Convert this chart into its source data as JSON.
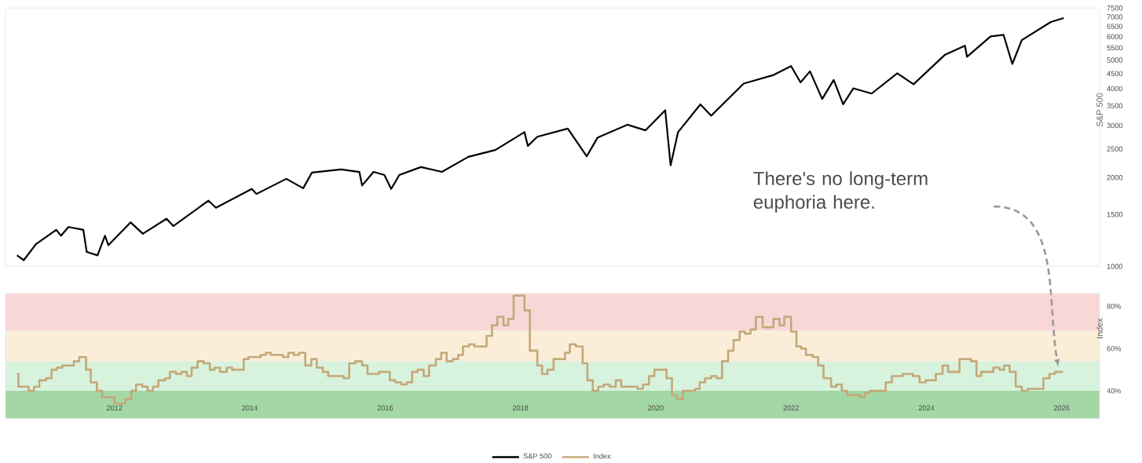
{
  "chart_data": [
    {
      "type": "line",
      "ylabel": "S&P 500",
      "log": "y",
      "tick_labels": "y",
      "xlim": [
        2010.39,
        2026.56
      ],
      "ylim": [
        1000,
        7500
      ],
      "yticks": [
        1000,
        1500,
        2000,
        2500,
        3000,
        3500,
        4000,
        4500,
        5000,
        5500,
        6000,
        6500,
        7000,
        7500
      ],
      "series": [
        {
          "name": "S&P 500",
          "color": "#000000",
          "x": [
            2010.56,
            2010.66,
            2010.84,
            2011.14,
            2011.21,
            2011.32,
            2011.54,
            2011.59,
            2011.75,
            2011.86,
            2011.91,
            2012.24,
            2012.42,
            2012.77,
            2012.87,
            2013.39,
            2013.5,
            2014.03,
            2014.1,
            2014.54,
            2014.79,
            2014.92,
            2015.35,
            2015.62,
            2015.66,
            2015.83,
            2015.99,
            2016.09,
            2016.21,
            2016.53,
            2016.84,
            2017.23,
            2017.63,
            2018.06,
            2018.11,
            2018.25,
            2018.7,
            2018.98,
            2019.14,
            2019.58,
            2019.85,
            2020.14,
            2020.22,
            2020.33,
            2020.66,
            2020.82,
            2021.3,
            2021.73,
            2022.0,
            2022.14,
            2022.28,
            2022.46,
            2022.63,
            2022.77,
            2022.92,
            2023.19,
            2023.57,
            2023.81,
            2024.27,
            2024.57,
            2024.6,
            2024.95,
            2025.14,
            2025.27,
            2025.41,
            2025.84,
            2026.03
          ],
          "values": [
            1090,
            1050,
            1190,
            1330,
            1270,
            1360,
            1330,
            1120,
            1090,
            1270,
            1180,
            1410,
            1290,
            1450,
            1370,
            1670,
            1580,
            1830,
            1760,
            1980,
            1840,
            2080,
            2130,
            2090,
            1880,
            2090,
            2040,
            1830,
            2040,
            2170,
            2090,
            2350,
            2480,
            2850,
            2560,
            2750,
            2930,
            2360,
            2730,
            3020,
            2890,
            3380,
            2200,
            2850,
            3540,
            3240,
            4160,
            4440,
            4770,
            4200,
            4580,
            3690,
            4280,
            3540,
            4010,
            3850,
            4510,
            4140,
            5200,
            5590,
            5130,
            6010,
            6090,
            4850,
            5840,
            6730,
            6940
          ]
        }
      ]
    },
    {
      "type": "step",
      "ylabel": "Index",
      "legend": "bottom",
      "xlim": [
        2010.39,
        2026.56
      ],
      "ylim": [
        27,
        86
      ],
      "xticks": [
        2012,
        2014,
        2016,
        2018,
        2020,
        2022,
        2024,
        2026
      ],
      "yticks": [
        {
          "value": 40,
          "label": "40%"
        },
        {
          "value": 60,
          "label": "60%"
        },
        {
          "value": 80,
          "label": "80%"
        }
      ],
      "bands": [
        {
          "axis": "y",
          "from": 27,
          "to": 40,
          "color": "#a3d7a5"
        },
        {
          "axis": "y",
          "from": 40,
          "to": 54,
          "color": "#d7f2dd"
        },
        {
          "axis": "y",
          "from": 54,
          "to": 68.5,
          "color": "#faeed9"
        },
        {
          "axis": "y",
          "from": 68.5,
          "to": 86,
          "color": "#f8d7d7"
        }
      ],
      "annotations": [
        "There's no long-term euphoria here."
      ],
      "series": [
        {
          "name": "Index",
          "color": "#c4a878",
          "x": [
            2010.56,
            2010.58,
            2010.73,
            2010.81,
            2010.89,
            2010.99,
            2011.07,
            2011.15,
            2011.23,
            2011.4,
            2011.48,
            2011.58,
            2011.65,
            2011.74,
            2011.82,
            2011.91,
            2012.0,
            2012.16,
            2012.25,
            2012.32,
            2012.41,
            2012.49,
            2012.57,
            2012.65,
            2012.75,
            2012.82,
            2012.91,
            2012.99,
            2013.07,
            2013.14,
            2013.23,
            2013.32,
            2013.41,
            2013.48,
            2013.56,
            2013.66,
            2013.74,
            2013.82,
            2013.91,
            2013.98,
            2014.06,
            2014.16,
            2014.24,
            2014.31,
            2014.49,
            2014.57,
            2014.65,
            2014.73,
            2014.82,
            2014.91,
            2014.99,
            2015.08,
            2015.16,
            2015.32,
            2015.39,
            2015.47,
            2015.56,
            2015.66,
            2015.74,
            2015.91,
            2016.07,
            2016.15,
            2016.24,
            2016.32,
            2016.4,
            2016.48,
            2016.57,
            2016.65,
            2016.75,
            2016.83,
            2016.91,
            2017.0,
            2017.08,
            2017.15,
            2017.24,
            2017.32,
            2017.4,
            2017.5,
            2017.58,
            2017.66,
            2017.75,
            2017.82,
            2017.9,
            2018.06,
            2018.14,
            2018.25,
            2018.32,
            2018.4,
            2018.49,
            2018.66,
            2018.73,
            2018.82,
            2018.92,
            2018.99,
            2019.07,
            2019.15,
            2019.23,
            2019.32,
            2019.41,
            2019.49,
            2019.66,
            2019.73,
            2019.81,
            2019.9,
            2019.98,
            2020.08,
            2020.16,
            2020.24,
            2020.31,
            2020.4,
            2020.49,
            2020.58,
            2020.65,
            2020.73,
            2020.82,
            2020.9,
            2020.98,
            2021.07,
            2021.15,
            2021.24,
            2021.32,
            2021.4,
            2021.48,
            2021.58,
            2021.66,
            2021.74,
            2021.83,
            2021.9,
            2022.0,
            2022.08,
            2022.15,
            2022.22,
            2022.32,
            2022.4,
            2022.48,
            2022.59,
            2022.67,
            2022.75,
            2022.83,
            2022.93,
            2023.02,
            2023.09,
            2023.16,
            2023.3,
            2023.4,
            2023.49,
            2023.65,
            2023.8,
            2023.9,
            2023.99,
            2024.14,
            2024.24,
            2024.32,
            2024.49,
            2024.66,
            2024.74,
            2024.81,
            2024.91,
            2024.99,
            2025.08,
            2025.15,
            2025.23,
            2025.32,
            2025.41,
            2025.5,
            2025.73,
            2025.82,
            2025.9,
            2026.02
          ],
          "values": [
            48,
            42,
            40,
            42,
            45,
            46,
            50,
            51,
            52,
            54,
            56,
            50,
            44,
            40,
            37,
            37,
            34,
            36,
            40,
            43,
            42,
            40,
            42,
            45,
            46,
            49,
            48,
            49,
            47,
            51,
            54,
            53,
            50,
            51,
            49,
            51,
            50,
            50,
            55,
            56,
            56,
            57,
            58,
            57,
            56,
            58,
            57,
            58,
            52,
            55,
            51,
            49,
            47,
            47,
            46,
            53,
            54,
            52,
            48,
            49,
            45,
            44,
            43,
            44,
            49,
            50,
            47,
            52,
            55,
            58,
            54,
            55,
            57,
            61,
            62,
            61,
            61,
            66,
            71,
            75,
            71,
            74,
            85,
            78,
            59,
            52,
            48,
            50,
            55,
            58,
            62,
            61,
            53,
            45,
            40,
            42,
            43,
            42,
            45,
            42,
            42,
            41,
            43,
            47,
            50,
            50,
            46,
            38,
            36,
            40,
            40,
            41,
            44,
            46,
            47,
            46,
            54,
            59,
            64,
            68,
            67,
            69,
            75,
            70,
            70,
            74,
            71,
            75,
            68,
            61,
            60,
            57,
            56,
            52,
            46,
            42,
            43,
            40,
            38,
            38,
            37,
            39,
            40,
            40,
            44,
            47,
            48,
            47,
            44,
            45,
            48,
            52,
            49,
            55,
            54,
            47,
            49,
            49,
            51,
            50,
            52,
            49,
            42,
            40,
            41,
            46,
            48,
            49,
            49
          ]
        }
      ]
    }
  ]
}
